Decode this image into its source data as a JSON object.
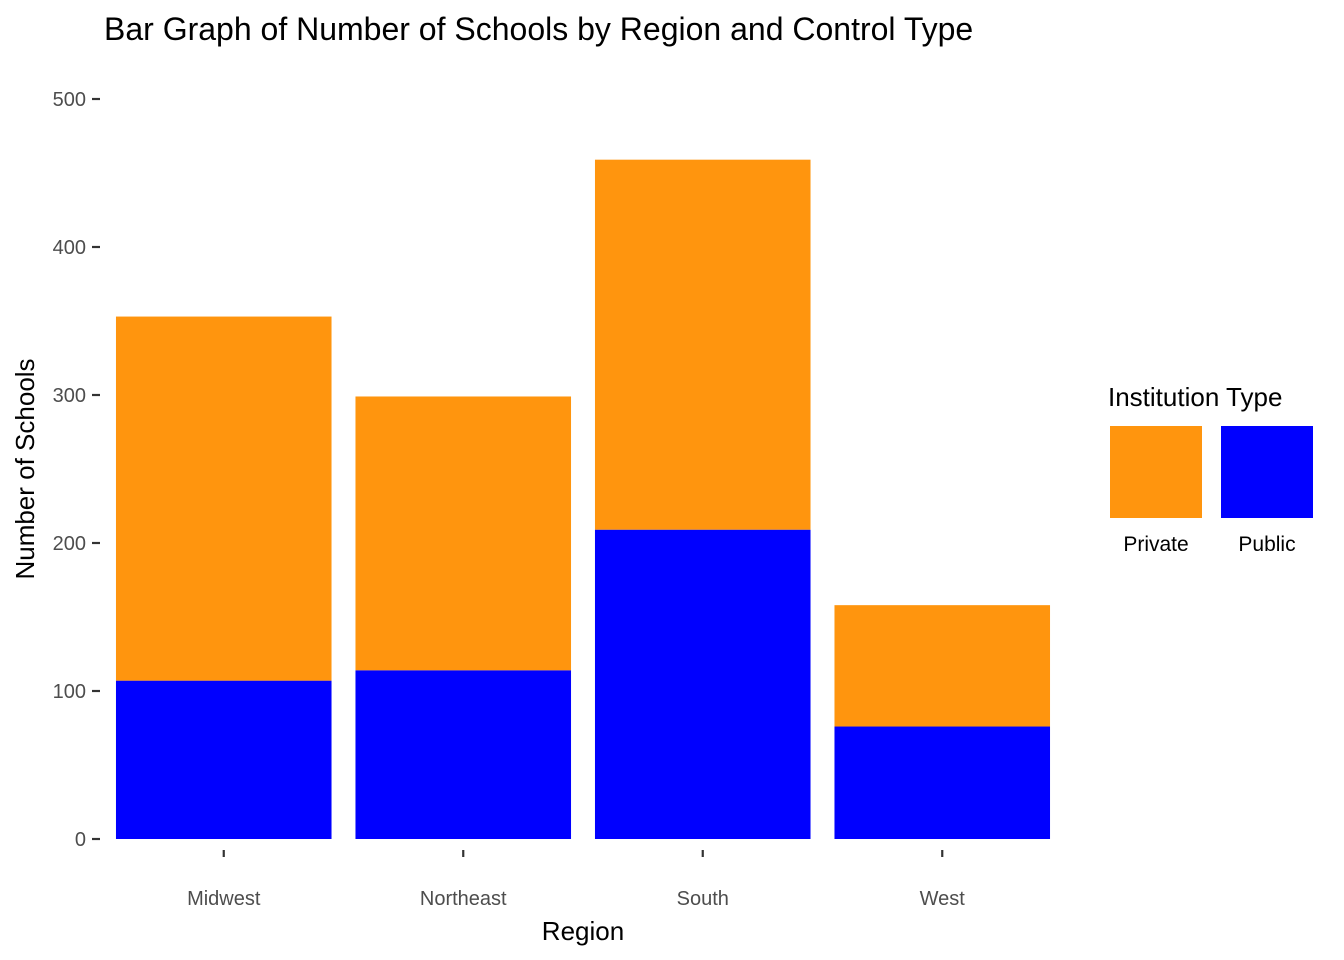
{
  "chart_data": {
    "type": "bar",
    "stacked": true,
    "title": "Bar Graph of Number of Schools by Region and Control Type",
    "xlabel": "Region",
    "ylabel": "Number of Schools",
    "categories": [
      "Midwest",
      "Northeast",
      "South",
      "West"
    ],
    "series": [
      {
        "name": "Private",
        "color": "#FF950E",
        "values": [
          246,
          185,
          250,
          82
        ]
      },
      {
        "name": "Public",
        "color": "#0000FF",
        "values": [
          107,
          114,
          209,
          76
        ]
      }
    ],
    "stack_order": [
      "Public",
      "Private"
    ],
    "ylim": [
      0,
      500
    ],
    "yticks": [
      0,
      100,
      200,
      300,
      400,
      500
    ],
    "grid": false,
    "legend": {
      "title": "Institution Type",
      "placement": "right",
      "items": [
        "Private",
        "Public"
      ]
    }
  }
}
